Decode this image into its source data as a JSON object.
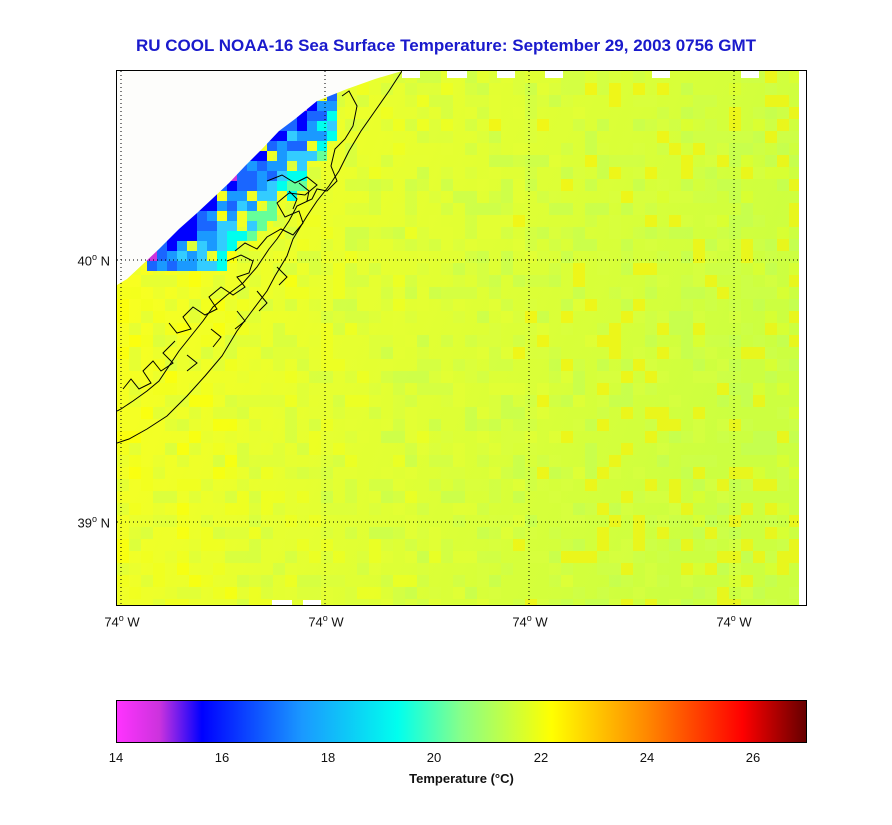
{
  "title": "RU COOL  NOAA-16  Sea Surface Temperature:  September 29, 2003 0756 GMT",
  "map": {
    "lat_labels": [
      {
        "text": "40",
        "unit": " N"
      },
      {
        "text": "39",
        "unit": " N"
      }
    ],
    "lon_labels": [
      {
        "text": "74",
        "unit": " W"
      },
      {
        "text": "74",
        "unit": " W"
      },
      {
        "text": "74",
        "unit": " W"
      },
      {
        "text": "74",
        "unit": " W"
      }
    ],
    "grid": true,
    "land_color": "#ffffff",
    "coast_color": "#000000"
  },
  "colorbar": {
    "range": [
      14,
      27
    ],
    "ticks": [
      "14",
      "16",
      "18",
      "20",
      "22",
      "24",
      "26"
    ],
    "label": "Temperature (°C)",
    "stops": [
      {
        "t": 14.0,
        "c": "#ff33ff"
      },
      {
        "t": 14.8,
        "c": "#cc33dd"
      },
      {
        "t": 15.6,
        "c": "#0000ff"
      },
      {
        "t": 17.5,
        "c": "#1a99ff"
      },
      {
        "t": 19.3,
        "c": "#00ffee"
      },
      {
        "t": 20.5,
        "c": "#88ff88"
      },
      {
        "t": 22.2,
        "c": "#ffff00"
      },
      {
        "t": 24.0,
        "c": "#ff8800"
      },
      {
        "t": 25.8,
        "c": "#ff0000"
      },
      {
        "t": 27.0,
        "c": "#660000"
      }
    ]
  }
}
